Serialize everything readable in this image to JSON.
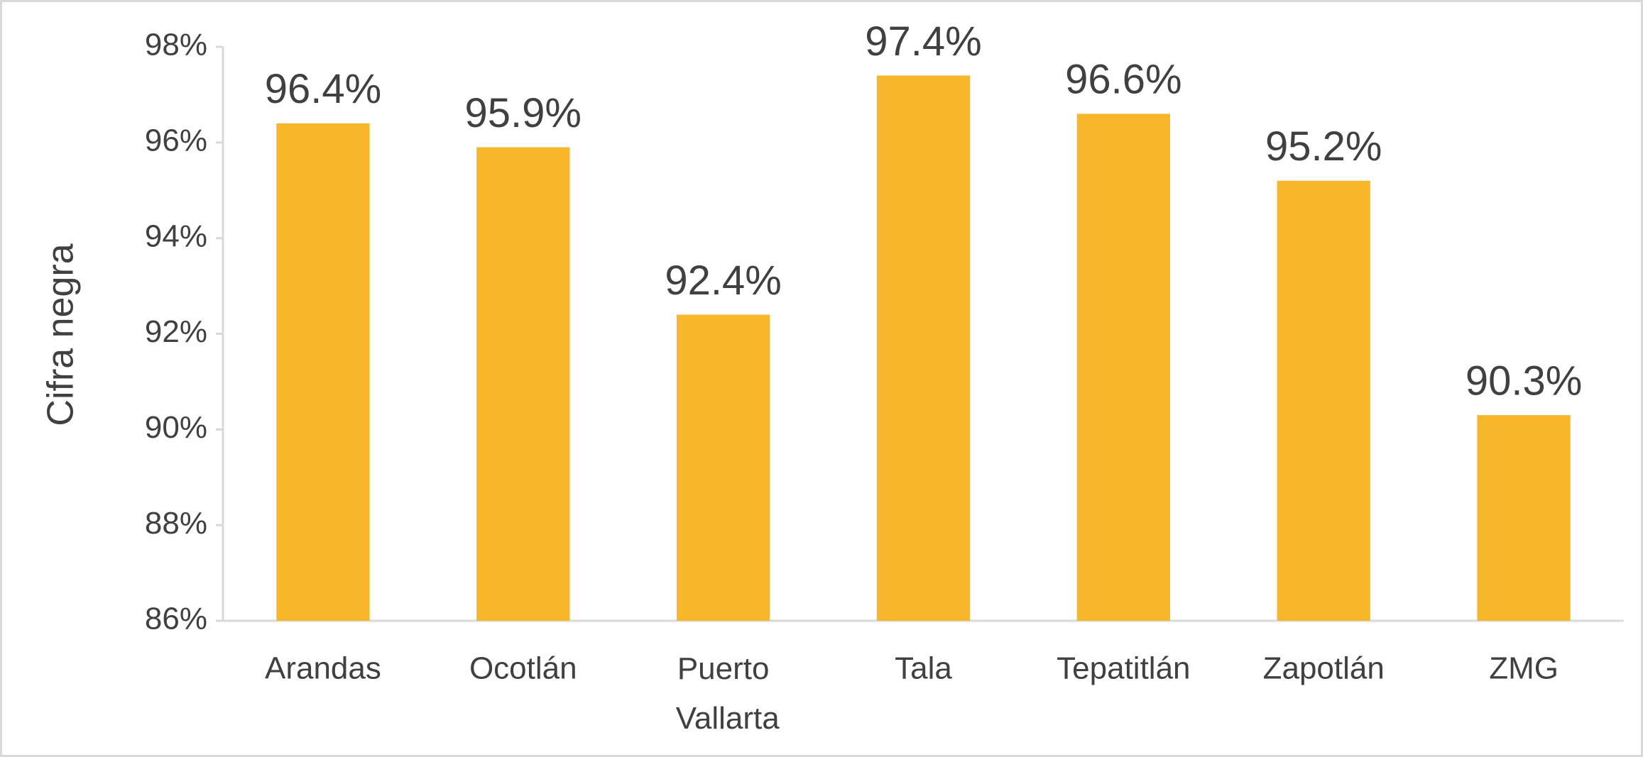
{
  "chart_data": {
    "type": "bar",
    "y_label": "Cifra negra",
    "categories": [
      "Arandas",
      "Ocotlán",
      "Puerto Vallarta",
      "Tala",
      "Tepatitlán",
      "Zapotlán",
      "ZMG"
    ],
    "values": [
      96.4,
      95.9,
      92.4,
      97.4,
      96.6,
      95.2,
      90.3
    ],
    "value_labels": [
      "96.4%",
      "95.9%",
      "92.4%",
      "97.4%",
      "96.6%",
      "95.2%",
      "90.3%"
    ],
    "color": "#f8b62a",
    "ylim": [
      86,
      98
    ],
    "yticks": [
      {
        "value": 86,
        "label": "86%"
      },
      {
        "value": 88,
        "label": "88%"
      },
      {
        "value": 90,
        "label": "90%"
      },
      {
        "value": 92,
        "label": "92%"
      },
      {
        "value": 94,
        "label": "94%"
      },
      {
        "value": 96,
        "label": "96%"
      },
      {
        "value": 98,
        "label": "98%"
      }
    ],
    "grid": false
  }
}
